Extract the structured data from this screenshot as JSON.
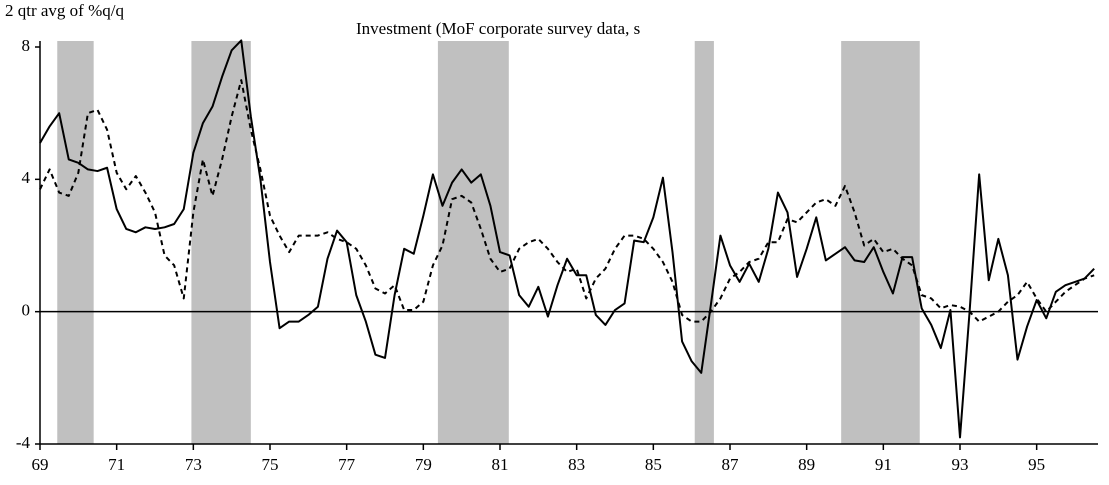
{
  "chart_data": {
    "type": "line",
    "title": "Investment (MoF corporate survey data, s",
    "y_label": "2 qtr avg of %q/q",
    "x": [
      69,
      69.25,
      69.5,
      69.75,
      70,
      70.25,
      70.5,
      70.75,
      71,
      71.25,
      71.5,
      71.75,
      72,
      72.25,
      72.5,
      72.75,
      73,
      73.25,
      73.5,
      73.75,
      74,
      74.25,
      74.5,
      74.75,
      75,
      75.25,
      75.5,
      75.75,
      76,
      76.25,
      76.5,
      76.75,
      77,
      77.25,
      77.5,
      77.75,
      78,
      78.25,
      78.5,
      78.75,
      79,
      79.25,
      79.5,
      79.75,
      80,
      80.25,
      80.5,
      80.75,
      81,
      81.25,
      81.5,
      81.75,
      82,
      82.25,
      82.5,
      82.75,
      83,
      83.25,
      83.5,
      83.75,
      84,
      84.25,
      84.5,
      84.75,
      85,
      85.25,
      85.5,
      85.75,
      86,
      86.25,
      86.5,
      86.75,
      87,
      87.25,
      87.5,
      87.75,
      88,
      88.25,
      88.5,
      88.75,
      89,
      89.25,
      89.5,
      89.75,
      90,
      90.25,
      90.5,
      90.75,
      91,
      91.25,
      91.5,
      91.75,
      92,
      92.25,
      92.5,
      92.75,
      93,
      93.25,
      93.5,
      93.75,
      94,
      94.25,
      94.5,
      94.75,
      95,
      95.25,
      95.5,
      95.75,
      96,
      96.25,
      96.5
    ],
    "series": [
      {
        "color": "#000000",
        "line_style": "solid",
        "values": [
          5.1,
          5.6,
          6.0,
          4.6,
          4.5,
          4.3,
          4.25,
          4.35,
          3.1,
          2.5,
          2.4,
          2.55,
          2.5,
          2.55,
          2.65,
          3.1,
          4.8,
          5.7,
          6.2,
          7.1,
          7.9,
          8.2,
          5.9,
          4.0,
          1.5,
          -0.5,
          -0.3,
          -0.3,
          -0.1,
          0.15,
          1.6,
          2.45,
          2.1,
          0.5,
          -0.3,
          -1.3,
          -1.4,
          0.5,
          1.9,
          1.75,
          2.9,
          4.15,
          3.2,
          3.9,
          4.3,
          3.9,
          4.15,
          3.2,
          1.8,
          1.7,
          0.5,
          0.15,
          0.75,
          -0.15,
          0.8,
          1.6,
          1.1,
          1.1,
          -0.1,
          -0.4,
          0.05,
          0.25,
          2.15,
          2.1,
          2.85,
          4.05,
          1.8,
          -0.9,
          -1.5,
          -1.85,
          0.2,
          2.3,
          1.4,
          0.9,
          1.45,
          0.9,
          1.9,
          3.6,
          3.0,
          1.05,
          1.9,
          2.85,
          1.55,
          1.75,
          1.95,
          1.55,
          1.5,
          1.95,
          1.2,
          0.55,
          1.65,
          1.65,
          0.1,
          -0.4,
          -1.1,
          0.05,
          -3.8,
          0.0,
          4.15,
          0.95,
          2.2,
          1.1,
          -1.45,
          -0.45,
          0.35,
          -0.2,
          0.6,
          0.8,
          0.9,
          1.0,
          1.3
        ]
      },
      {
        "color": "#000000",
        "line_style": "dashed",
        "values": [
          3.7,
          4.3,
          3.6,
          3.5,
          4.2,
          6.0,
          6.1,
          5.5,
          4.2,
          3.7,
          4.1,
          3.6,
          3.0,
          1.7,
          1.4,
          0.4,
          3.0,
          4.6,
          3.5,
          4.6,
          5.9,
          7.0,
          5.5,
          4.3,
          2.9,
          2.3,
          1.8,
          2.3,
          2.3,
          2.3,
          2.4,
          2.2,
          2.1,
          1.9,
          1.4,
          0.7,
          0.55,
          0.8,
          0.05,
          0.05,
          0.3,
          1.4,
          2.0,
          3.4,
          3.5,
          3.3,
          2.5,
          1.6,
          1.2,
          1.3,
          1.9,
          2.1,
          2.2,
          1.9,
          1.5,
          1.2,
          1.3,
          0.4,
          1.0,
          1.3,
          1.9,
          2.3,
          2.3,
          2.2,
          1.9,
          1.5,
          0.9,
          -0.1,
          -0.3,
          -0.3,
          0.0,
          0.4,
          1.0,
          1.2,
          1.5,
          1.6,
          2.1,
          2.1,
          2.8,
          2.7,
          3.0,
          3.3,
          3.4,
          3.2,
          3.8,
          3.0,
          2.0,
          2.2,
          1.8,
          1.9,
          1.6,
          1.4,
          0.5,
          0.4,
          0.1,
          0.2,
          0.15,
          0.0,
          -0.3,
          -0.15,
          0.0,
          0.3,
          0.5,
          0.9,
          0.4,
          0.0,
          0.3,
          0.6,
          0.8,
          1.0,
          1.1
        ]
      }
    ],
    "shaded_periods": [
      [
        69.45,
        70.4
      ],
      [
        72.95,
        74.5
      ],
      [
        79.38,
        81.23
      ],
      [
        86.08,
        86.58
      ],
      [
        89.9,
        91.95
      ]
    ],
    "shade_color": "#c0c0c0",
    "xlim": [
      69,
      96.6
    ],
    "xticks": [
      69,
      71,
      73,
      75,
      77,
      79,
      81,
      83,
      85,
      87,
      89,
      91,
      93,
      95
    ],
    "ylim": [
      -4,
      8
    ],
    "yticks": [
      -4,
      0,
      4,
      8
    ]
  }
}
